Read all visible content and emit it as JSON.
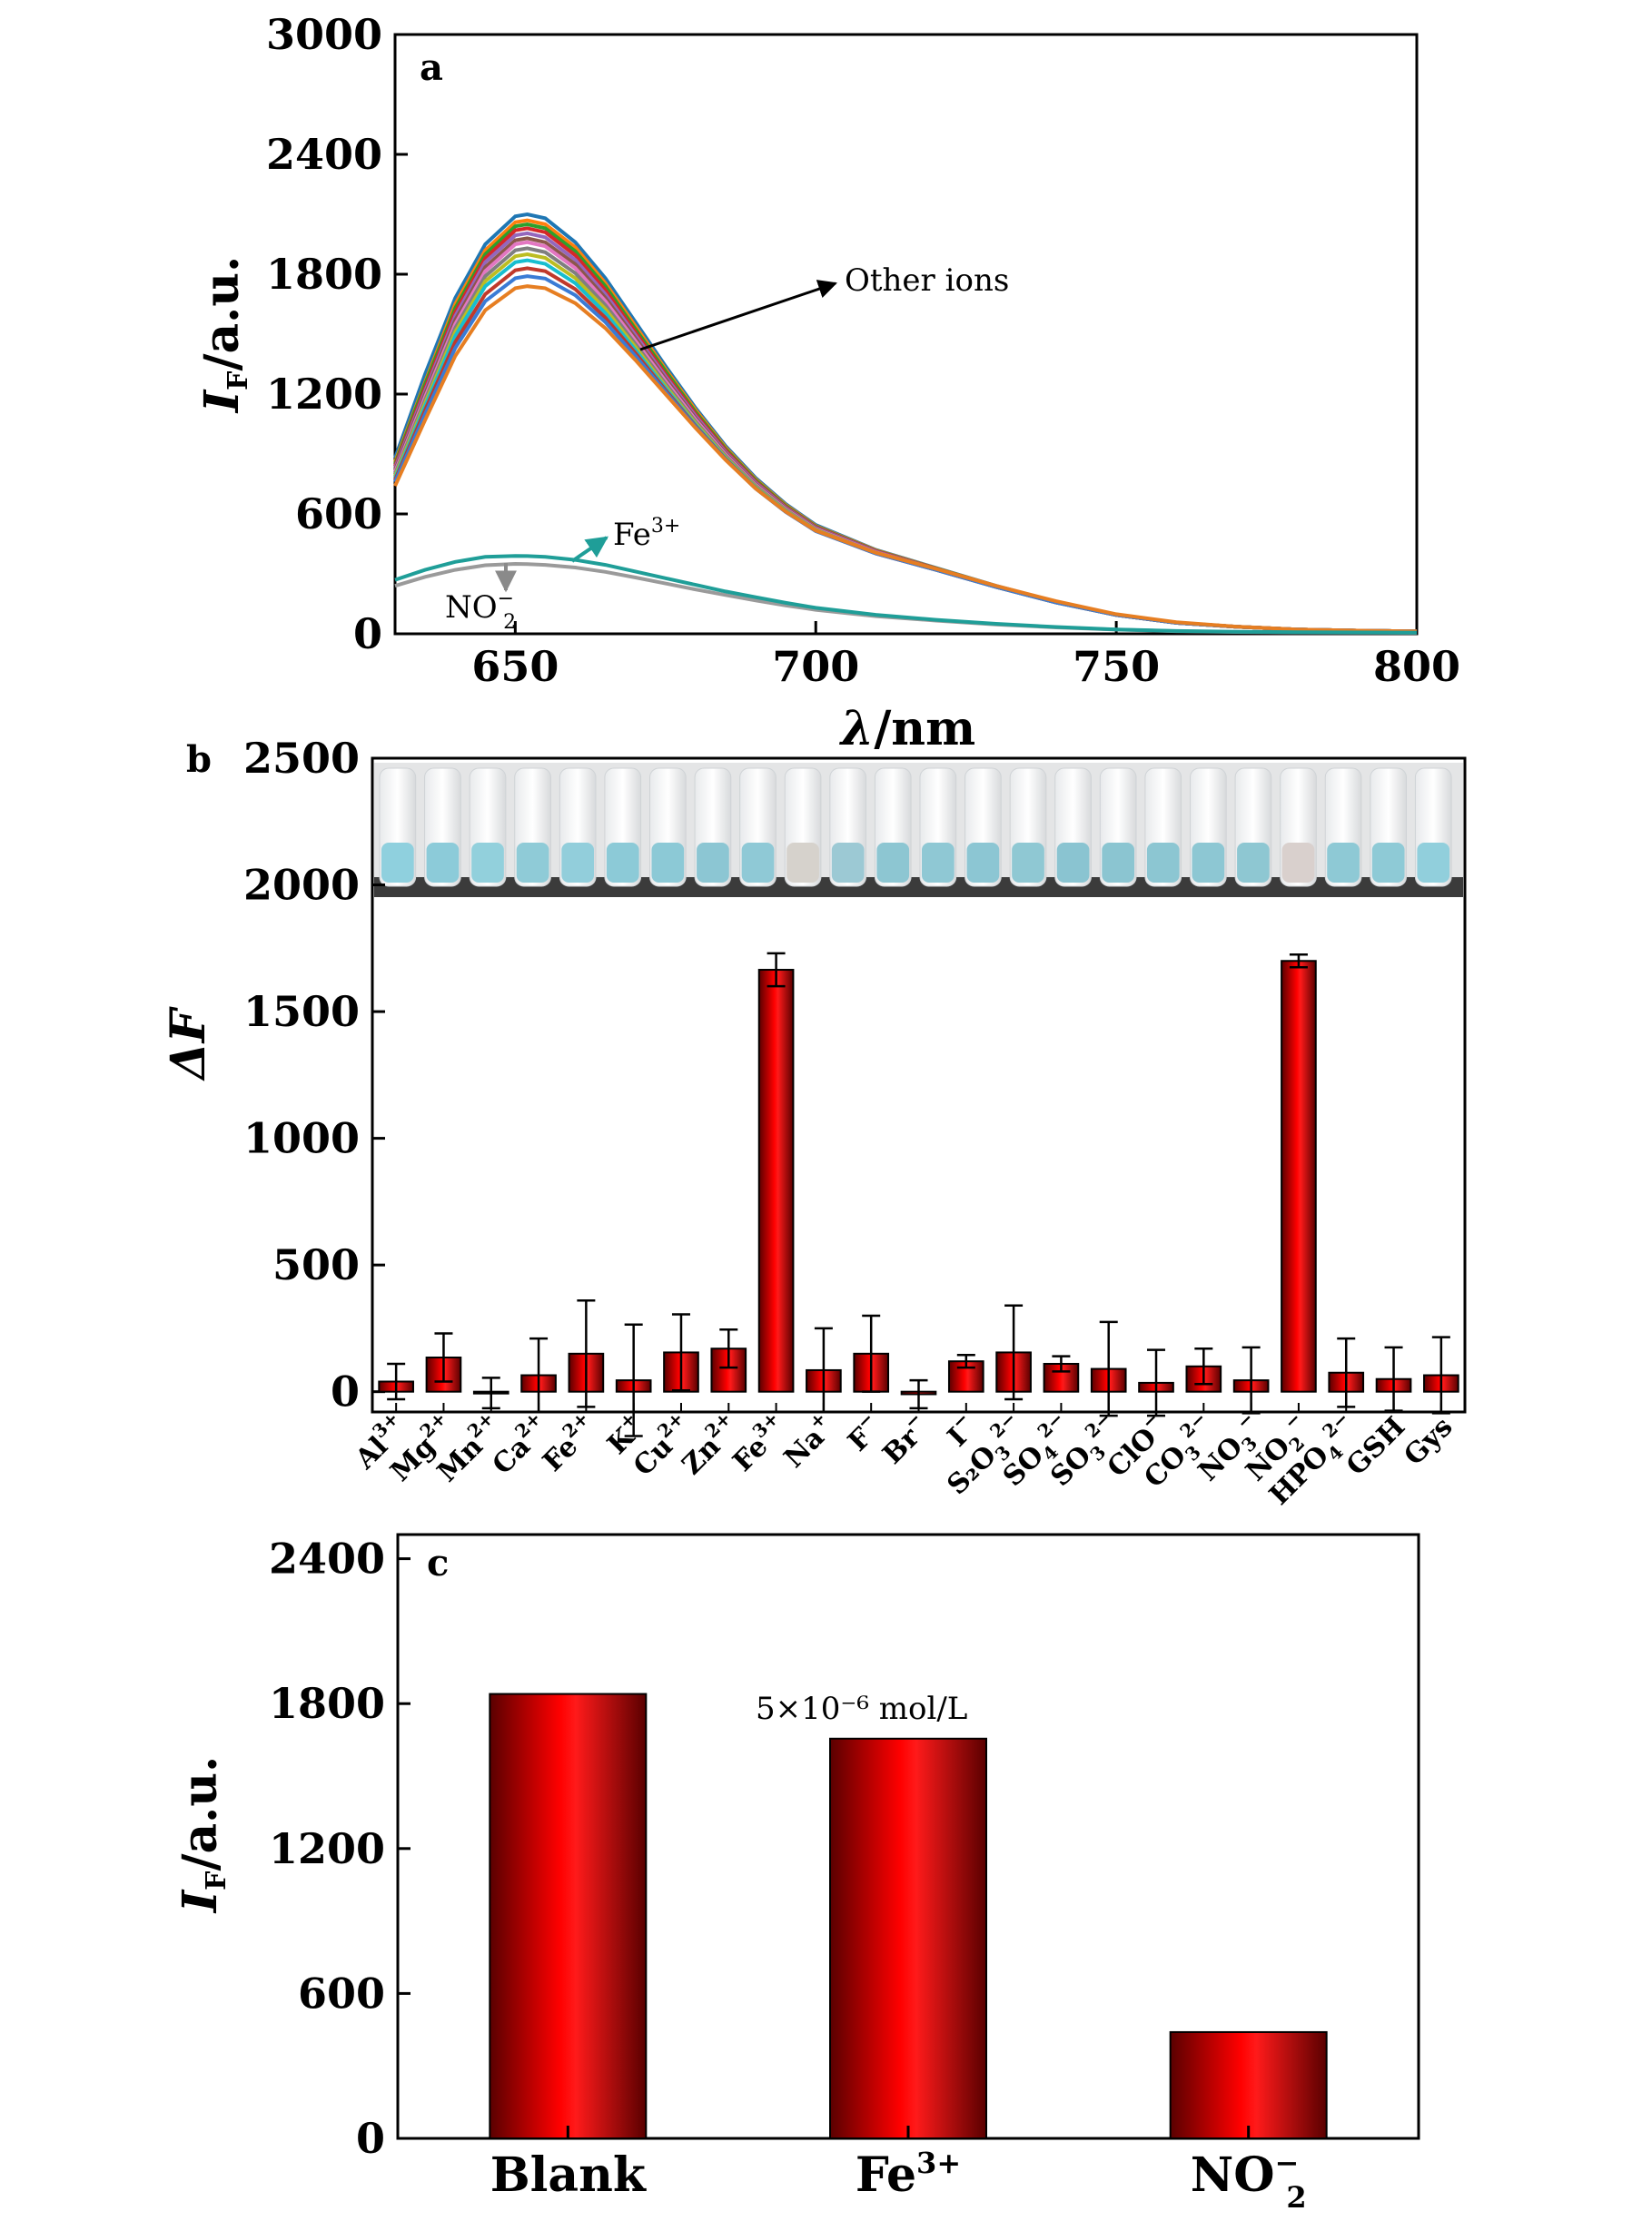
{
  "panel_a": {
    "label": "a",
    "y_label_main": "I",
    "y_label_sub": "F",
    "y_label_rest": "/a.u.",
    "x_label_symbol": "λ",
    "x_label_rest": "/nm",
    "annotation_other": "Other ions",
    "annotation_fe": "Fe3+",
    "annotation_no2": "NO2−",
    "colors": [
      "#1f77b4",
      "#ff7f0e",
      "#2ca02c",
      "#d62728",
      "#9467bd",
      "#8c564b",
      "#e377c2",
      "#7f7f7f",
      "#bcbd22",
      "#17becf",
      "#c0392b",
      "#3a7bd5",
      "#e67e22",
      "#16a085",
      "#cc5500"
    ],
    "fe_color": "#1f9e98",
    "no2_color": "#9a9a9a"
  },
  "panel_b": {
    "label": "b",
    "y_label": "ΔF",
    "bar_color": "#ff0000",
    "vial_colors": [
      "#8fd0de",
      "#8ccbd9",
      "#92d0dc",
      "#8fcbd7",
      "#92cedb",
      "#8ccad7",
      "#8cc9d6",
      "#8cc6d3",
      "#8fc9d6",
      "#d6d2cc",
      "#9cc9d4",
      "#8dc6d2",
      "#8fc8d4",
      "#8cc6d3",
      "#8fc8d3",
      "#8ac4d1",
      "#8bc5d1",
      "#8cc6d2",
      "#8dc7d3",
      "#8ec7d2",
      "#d9d0cd",
      "#8ec9d5",
      "#8ecad6",
      "#91cfdc"
    ]
  },
  "panel_c": {
    "label": "c",
    "y_label_main": "I",
    "y_label_sub": "F",
    "y_label_rest": "/a.u.",
    "annotation": "5×10⁻⁶ mol/L",
    "bar_color": "#ff0000"
  },
  "chart_data": [
    {
      "type": "line",
      "panel": "a",
      "xlabel": "λ/nm",
      "ylabel": "IF/a.u.",
      "xlim": [
        630,
        800
      ],
      "ylim": [
        0,
        3000
      ],
      "xticks": [
        650,
        700,
        750,
        800
      ],
      "yticks": [
        0,
        600,
        1200,
        1800,
        2400,
        3000
      ],
      "peak_x": 652,
      "x": [
        630,
        635,
        640,
        645,
        650,
        652,
        655,
        660,
        665,
        670,
        675,
        680,
        685,
        690,
        695,
        700,
        710,
        720,
        730,
        740,
        750,
        760,
        770,
        780,
        790,
        800
      ],
      "series": [
        {
          "values": [
            880,
            1300,
            1680,
            1950,
            2090,
            2100,
            2080,
            1960,
            1780,
            1560,
            1340,
            1130,
            940,
            780,
            650,
            545,
            420,
            330,
            240,
            160,
            95,
            55,
            35,
            22,
            16,
            12
          ]
        },
        {
          "values": [
            860,
            1260,
            1650,
            1920,
            2060,
            2070,
            2050,
            1935,
            1755,
            1540,
            1325,
            1120,
            932,
            773,
            645,
            540,
            418,
            328,
            239,
            160,
            95,
            55,
            35,
            22,
            16,
            12
          ]
        },
        {
          "values": [
            850,
            1250,
            1630,
            1900,
            2040,
            2050,
            2030,
            1915,
            1740,
            1525,
            1315,
            1110,
            925,
            768,
            640,
            537,
            416,
            327,
            238,
            159,
            95,
            55,
            35,
            22,
            16,
            12
          ]
        },
        {
          "values": [
            840,
            1230,
            1610,
            1880,
            2020,
            2030,
            2010,
            1895,
            1720,
            1510,
            1300,
            1100,
            918,
            762,
            636,
            534,
            414,
            326,
            237,
            159,
            94,
            55,
            35,
            22,
            16,
            12
          ]
        },
        {
          "values": [
            830,
            1215,
            1590,
            1860,
            1995,
            2005,
            1985,
            1872,
            1700,
            1495,
            1288,
            1090,
            910,
            756,
            632,
            531,
            412,
            325,
            236,
            158,
            94,
            55,
            35,
            22,
            16,
            12
          ]
        },
        {
          "values": [
            820,
            1200,
            1570,
            1835,
            1970,
            1980,
            1960,
            1850,
            1682,
            1480,
            1276,
            1080,
            903,
            750,
            628,
            528,
            410,
            324,
            236,
            158,
            94,
            55,
            35,
            22,
            16,
            12
          ]
        },
        {
          "values": [
            810,
            1185,
            1550,
            1815,
            1950,
            1960,
            1940,
            1830,
            1665,
            1466,
            1265,
            1072,
            897,
            745,
            624,
            525,
            408,
            323,
            235,
            158,
            94,
            55,
            35,
            22,
            16,
            12
          ]
        },
        {
          "values": [
            800,
            1170,
            1530,
            1790,
            1920,
            1930,
            1910,
            1805,
            1645,
            1450,
            1252,
            1062,
            890,
            740,
            620,
            522,
            406,
            322,
            235,
            158,
            94,
            55,
            35,
            22,
            16,
            12
          ]
        },
        {
          "values": [
            790,
            1155,
            1510,
            1765,
            1890,
            1900,
            1882,
            1780,
            1625,
            1435,
            1240,
            1053,
            883,
            735,
            616,
            519,
            404,
            321,
            234,
            157,
            94,
            55,
            35,
            22,
            16,
            12
          ]
        },
        {
          "values": [
            780,
            1140,
            1490,
            1740,
            1860,
            1870,
            1852,
            1755,
            1605,
            1420,
            1230,
            1046,
            878,
            731,
            613,
            517,
            403,
            320,
            234,
            157,
            94,
            55,
            35,
            22,
            16,
            12
          ]
        },
        {
          "values": [
            770,
            1120,
            1460,
            1700,
            1820,
            1830,
            1815,
            1725,
            1582,
            1405,
            1220,
            1040,
            874,
            728,
            611,
            515,
            402,
            320,
            234,
            157,
            94,
            55,
            35,
            22,
            16,
            12
          ]
        },
        {
          "values": [
            760,
            1100,
            1430,
            1665,
            1780,
            1790,
            1778,
            1695,
            1560,
            1390,
            1212,
            1036,
            872,
            727,
            610,
            514,
            402,
            320,
            234,
            157,
            94,
            55,
            35,
            22,
            16,
            12
          ]
        },
        {
          "values": [
            740,
            1070,
            1390,
            1620,
            1730,
            1740,
            1730,
            1655,
            1530,
            1370,
            1200,
            1030,
            870,
            727,
            612,
            517,
            406,
            325,
            240,
            163,
            98,
            58,
            36,
            22,
            16,
            12
          ]
        }
      ],
      "fe3_values": [
        270,
        320,
        360,
        385,
        390,
        389,
        385,
        370,
        345,
        312,
        278,
        245,
        212,
        183,
        155,
        130,
        95,
        70,
        50,
        34,
        22,
        14,
        10,
        8,
        7,
        6
      ],
      "no2_values": [
        240,
        285,
        320,
        343,
        350,
        349,
        345,
        332,
        310,
        282,
        252,
        222,
        194,
        167,
        142,
        120,
        88,
        66,
        47,
        32,
        21,
        13,
        9,
        7,
        6,
        5
      ]
    },
    {
      "type": "bar",
      "panel": "b",
      "ylabel": "ΔF",
      "ylim": [
        -80,
        2500
      ],
      "yticks": [
        0,
        500,
        1000,
        1500,
        2000,
        2500
      ],
      "categories": [
        {
          "base": "Al",
          "sup": "3+",
          "sub": ""
        },
        {
          "base": "Mg",
          "sup": "2+",
          "sub": ""
        },
        {
          "base": "Mn",
          "sup": "2+",
          "sub": ""
        },
        {
          "base": "Ca",
          "sup": "2+",
          "sub": ""
        },
        {
          "base": "Fe",
          "sup": "2+",
          "sub": ""
        },
        {
          "base": "K",
          "sup": "+",
          "sub": ""
        },
        {
          "base": "Cu",
          "sup": "2+",
          "sub": ""
        },
        {
          "base": "Zn",
          "sup": "2+",
          "sub": ""
        },
        {
          "base": "Fe",
          "sup": "3+",
          "sub": ""
        },
        {
          "base": "Na",
          "sup": "+",
          "sub": ""
        },
        {
          "base": "F",
          "sup": "−",
          "sub": ""
        },
        {
          "base": "Br",
          "sup": "−",
          "sub": ""
        },
        {
          "base": "I",
          "sup": "−",
          "sub": ""
        },
        {
          "base": "S₂O",
          "sup": "2−",
          "sub": "3"
        },
        {
          "base": "SO",
          "sup": "2−",
          "sub": "4"
        },
        {
          "base": "SO",
          "sup": "2−",
          "sub": "3"
        },
        {
          "base": "ClO",
          "sup": "−",
          "sub": ""
        },
        {
          "base": "CO",
          "sup": "2−",
          "sub": "3"
        },
        {
          "base": "NO",
          "sup": "−",
          "sub": "3"
        },
        {
          "base": "NO",
          "sup": "−",
          "sub": "2"
        },
        {
          "base": "HPO",
          "sup": "2−",
          "sub": "4"
        },
        {
          "base": "GSH",
          "sup": "",
          "sub": ""
        },
        {
          "base": "Gys",
          "sup": "",
          "sub": ""
        }
      ],
      "values": [
        40,
        135,
        -5,
        65,
        150,
        45,
        155,
        170,
        1665,
        85,
        150,
        -10,
        120,
        155,
        110,
        90,
        35,
        100,
        45,
        1700,
        75,
        50,
        65
      ],
      "errors": [
        70,
        95,
        60,
        145,
        210,
        220,
        150,
        75,
        65,
        165,
        150,
        55,
        25,
        185,
        30,
        185,
        130,
        70,
        130,
        25,
        135,
        125,
        150
      ]
    },
    {
      "type": "bar",
      "panel": "c",
      "ylabel": "IF/a.u.",
      "ylim": [
        0,
        2500
      ],
      "yticks": [
        0,
        600,
        1200,
        1800,
        2400
      ],
      "categories": [
        "Blank",
        "Fe3+",
        "NO2−"
      ],
      "values": [
        1840,
        1655,
        440
      ]
    }
  ]
}
